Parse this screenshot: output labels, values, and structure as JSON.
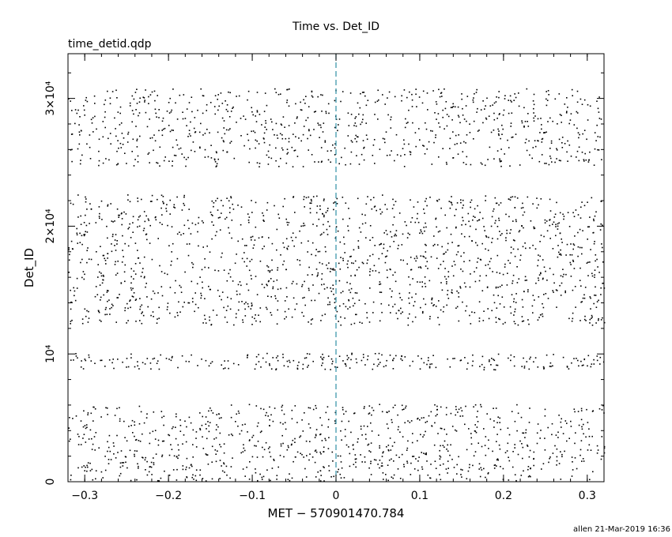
{
  "page": {
    "filename": "time_detid.qdp",
    "footer": "allen 21-Mar-2019 16:36"
  },
  "chart_data": {
    "type": "scatter",
    "title": "Time vs. Det_ID",
    "xlabel": "MET − 570901470.784",
    "ylabel": "Det_ID",
    "xlim": [
      -0.32,
      0.32
    ],
    "ylim": [
      0,
      33500
    ],
    "x_ticks": [
      {
        "value": -0.3,
        "label": "−0.3"
      },
      {
        "value": -0.2,
        "label": "−0.2"
      },
      {
        "value": -0.1,
        "label": "−0.1"
      },
      {
        "value": 0,
        "label": "0"
      },
      {
        "value": 0.1,
        "label": "0.1"
      },
      {
        "value": 0.2,
        "label": "0.2"
      },
      {
        "value": 0.3,
        "label": "0.3"
      }
    ],
    "y_ticks": [
      {
        "value": 0,
        "label": "0"
      },
      {
        "value": 10000,
        "label": "10⁴"
      },
      {
        "value": 20000,
        "label": "2×10⁴"
      },
      {
        "value": 30000,
        "label": "3×10⁴"
      }
    ],
    "grid": false,
    "reference_line": {
      "x": 0,
      "color": "#2f8fa5",
      "style": "dashed"
    },
    "series": [
      {
        "bands": [
          {
            "ymin": 100,
            "ymax": 6100,
            "count": 900
          },
          {
            "ymin": 8800,
            "ymax": 10100,
            "count": 260
          },
          {
            "ymin": 12300,
            "ymax": 22500,
            "count": 1500
          },
          {
            "ymin": 24700,
            "ymax": 30800,
            "count": 850
          }
        ],
        "color": "#000000"
      }
    ]
  }
}
